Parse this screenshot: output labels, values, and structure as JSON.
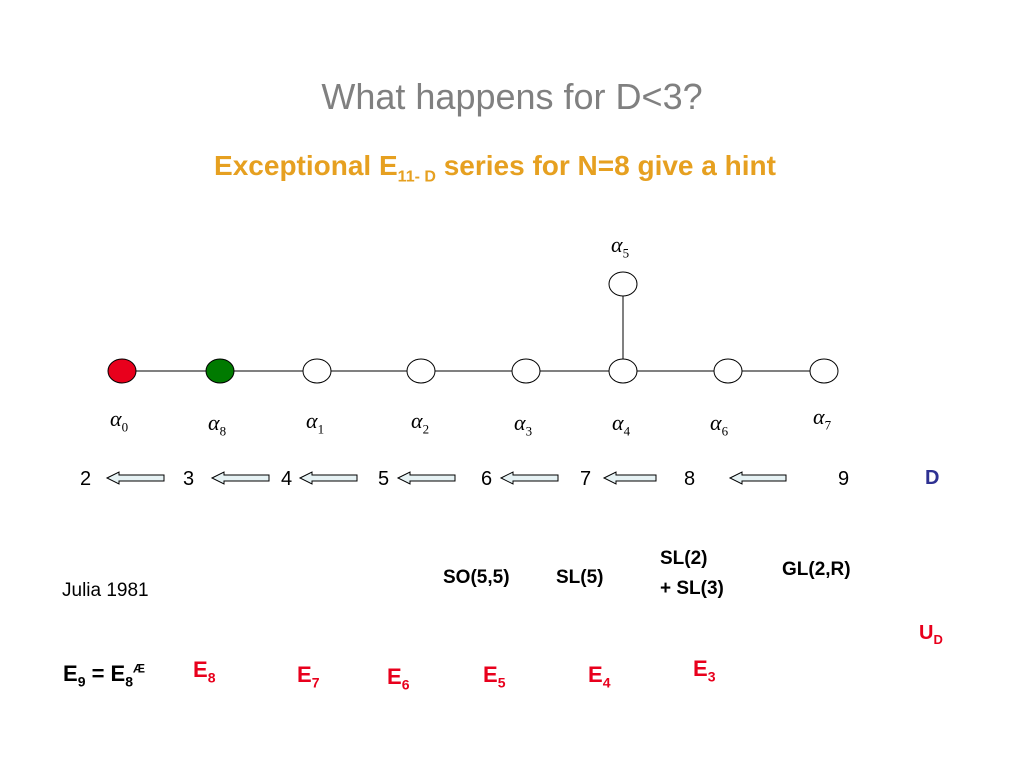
{
  "slide": {
    "title": "What happens for D<3?",
    "subtitle": {
      "prefix": "Exceptional E",
      "sub": "11- D",
      "suffix": " series for  N=8 give a hint"
    }
  },
  "diagram": {
    "top_node": {
      "label": "α",
      "index": "5"
    },
    "nodes": [
      {
        "label": "α",
        "index": "0",
        "fill": "#e8001c"
      },
      {
        "label": "α",
        "index": "8",
        "fill": "#007a00"
      },
      {
        "label": "α",
        "index": "1",
        "fill": "#ffffff"
      },
      {
        "label": "α",
        "index": "2",
        "fill": "#ffffff"
      },
      {
        "label": "α",
        "index": "3",
        "fill": "#ffffff"
      },
      {
        "label": "α",
        "index": "4",
        "fill": "#ffffff"
      },
      {
        "label": "α",
        "index": "6",
        "fill": "#ffffff"
      },
      {
        "label": "α",
        "index": "7",
        "fill": "#ffffff"
      }
    ]
  },
  "dimensions": {
    "values": [
      "2",
      "3",
      "4",
      "5",
      "6",
      "7",
      "8",
      "9"
    ],
    "label": "D"
  },
  "groups": {
    "so55": "SO(5,5)",
    "sl5": "SL(5)",
    "sl2_line1": "SL(2)",
    "sl2_line2": "+ SL(3)",
    "gl2r": "GL(2,R)"
  },
  "citation": "Julia 1981",
  "ud": {
    "main": "U",
    "sub": "D"
  },
  "e9_formula": {
    "a": "E",
    "a_sub": "9",
    "eq": " = E",
    "b_sub": "8",
    "b_sup": "Æ"
  },
  "exceptional": [
    {
      "main": "E",
      "sub": "8"
    },
    {
      "main": "E",
      "sub": "7"
    },
    {
      "main": "E",
      "sub": "6"
    },
    {
      "main": "E",
      "sub": "5"
    },
    {
      "main": "E",
      "sub": "4"
    },
    {
      "main": "E",
      "sub": "3"
    }
  ],
  "colors": {
    "title": "#808080",
    "subtitle": "#e6a020",
    "red": "#e8001c",
    "green": "#007a00",
    "blue": "#2e3192",
    "arrow_fill": "#e6f2f4"
  }
}
